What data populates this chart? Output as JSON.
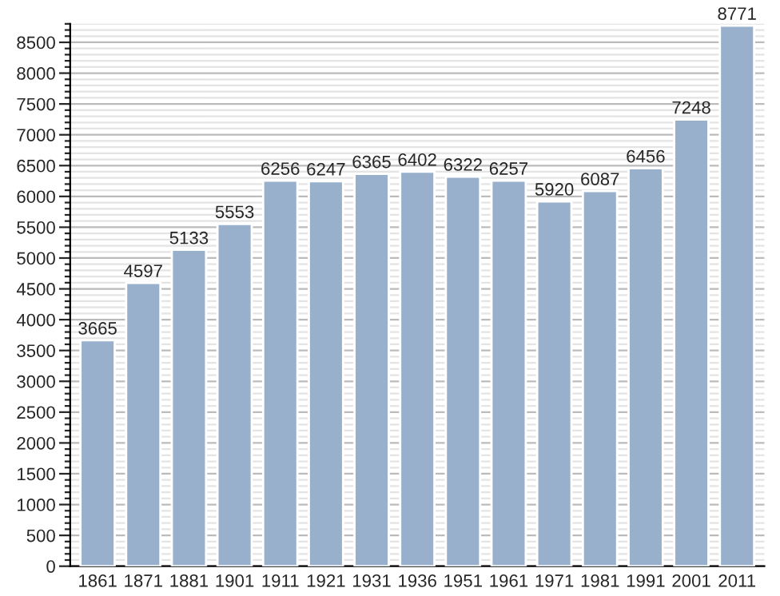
{
  "chart_data": {
    "type": "bar",
    "categories": [
      "1861",
      "1871",
      "1881",
      "1901",
      "1911",
      "1921",
      "1931",
      "1936",
      "1951",
      "1961",
      "1971",
      "1981",
      "1991",
      "2001",
      "2011"
    ],
    "values": [
      3665,
      4597,
      5133,
      5553,
      6256,
      6247,
      6365,
      6402,
      6322,
      6257,
      5920,
      6087,
      6456,
      7248,
      8771
    ],
    "color": "#98b0cc",
    "data_labels": true,
    "grid": "y",
    "ylim": [
      0,
      8800
    ],
    "yticks": [
      0,
      {
        "value": 100,
        "label": null
      },
      {
        "value": 200,
        "label": null
      },
      {
        "value": 300,
        "label": null
      },
      {
        "value": 400,
        "label": null
      },
      500,
      {
        "value": 600,
        "label": null
      },
      {
        "value": 700,
        "label": null
      },
      {
        "value": 800,
        "label": null
      },
      {
        "value": 900,
        "label": null
      },
      1000,
      {
        "value": 1100,
        "label": null
      },
      {
        "value": 1200,
        "label": null
      },
      {
        "value": 1300,
        "label": null
      },
      {
        "value": 1400,
        "label": null
      },
      1500,
      {
        "value": 1600,
        "label": null
      },
      {
        "value": 1700,
        "label": null
      },
      {
        "value": 1800,
        "label": null
      },
      {
        "value": 1900,
        "label": null
      },
      2000,
      {
        "value": 2100,
        "label": null
      },
      {
        "value": 2200,
        "label": null
      },
      {
        "value": 2300,
        "label": null
      },
      {
        "value": 2400,
        "label": null
      },
      2500,
      {
        "value": 2600,
        "label": null
      },
      {
        "value": 2700,
        "label": null
      },
      {
        "value": 2800,
        "label": null
      },
      {
        "value": 2900,
        "label": null
      },
      3000,
      {
        "value": 3100,
        "label": null
      },
      {
        "value": 3200,
        "label": null
      },
      {
        "value": 3300,
        "label": null
      },
      {
        "value": 3400,
        "label": null
      },
      3500,
      {
        "value": 3600,
        "label": null
      },
      {
        "value": 3700,
        "label": null
      },
      {
        "value": 3800,
        "label": null
      },
      {
        "value": 3900,
        "label": null
      },
      4000,
      {
        "value": 4100,
        "label": null
      },
      {
        "value": 4200,
        "label": null
      },
      {
        "value": 4300,
        "label": null
      },
      {
        "value": 4400,
        "label": null
      },
      4500,
      {
        "value": 4600,
        "label": null
      },
      {
        "value": 4700,
        "label": null
      },
      {
        "value": 4800,
        "label": null
      },
      {
        "value": 4900,
        "label": null
      },
      5000,
      {
        "value": 5100,
        "label": null
      },
      {
        "value": 5200,
        "label": null
      },
      {
        "value": 5300,
        "label": null
      },
      {
        "value": 5400,
        "label": null
      },
      5500,
      {
        "value": 5600,
        "label": null
      },
      {
        "value": 5700,
        "label": null
      },
      {
        "value": 5800,
        "label": null
      },
      {
        "value": 5900,
        "label": null
      },
      6000,
      {
        "value": 6100,
        "label": null
      },
      {
        "value": 6200,
        "label": null
      },
      {
        "value": 6300,
        "label": null
      },
      {
        "value": 6400,
        "label": null
      },
      6500,
      {
        "value": 6600,
        "label": null
      },
      {
        "value": 6700,
        "label": null
      },
      {
        "value": 6800,
        "label": null
      },
      {
        "value": 6900,
        "label": null
      },
      7000,
      {
        "value": 7100,
        "label": null
      },
      {
        "value": 7200,
        "label": null
      },
      {
        "value": 7300,
        "label": null
      },
      {
        "value": 7400,
        "label": null
      },
      7500,
      {
        "value": 7600,
        "label": null
      },
      {
        "value": 7700,
        "label": null
      },
      {
        "value": 7800,
        "label": null
      },
      {
        "value": 7900,
        "label": null
      },
      8000,
      {
        "value": 8100,
        "label": null
      },
      {
        "value": 8200,
        "label": null
      },
      {
        "value": 8300,
        "label": null
      },
      {
        "value": 8400,
        "label": null
      },
      8500,
      {
        "value": 8600,
        "label": null
      },
      {
        "value": 8700,
        "label": null
      },
      {
        "value": 8800,
        "label": null
      }
    ]
  }
}
